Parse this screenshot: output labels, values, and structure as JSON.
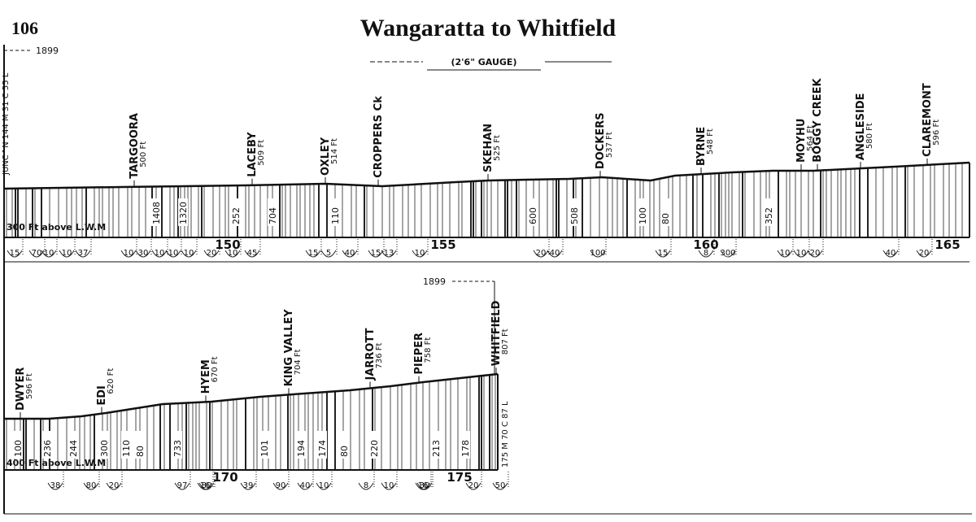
{
  "page_number": "106",
  "title": "Wangaratta to Whitfield",
  "gauge": "(2'6\" GAUGE)",
  "opened": [
    "1899",
    "1899"
  ],
  "top": {
    "junction": "JUNC^N 144 M 31 C 55 L",
    "datum": "300 Ft above L.W.M",
    "stations": [
      {
        "name": "TARGOORA",
        "height": "500 Ft"
      },
      {
        "name": "LACEBY",
        "height": "509 Ft"
      },
      {
        "name": "OXLEY",
        "height": "514 Ft"
      },
      {
        "name": "CROPPERS Ck"
      },
      {
        "name": "SKEHAN",
        "height": "525 Ft"
      },
      {
        "name": "DOCKERS",
        "height": "537 Ft"
      },
      {
        "name": "BYRNE",
        "height": "548 Ft"
      },
      {
        "name": "MOYHU",
        "height": "564 Ft"
      },
      {
        "name": "BOGGY CREEK"
      },
      {
        "name": "ANGLESIDE",
        "height": "580 Ft"
      },
      {
        "name": "CLAREMONT",
        "height": "596 Ft"
      }
    ],
    "miles": [
      "150",
      "155",
      "160",
      "165"
    ],
    "lengths": [
      "1408",
      "1320",
      "252",
      "704",
      "110",
      "600",
      "508",
      "100",
      "80",
      "352"
    ],
    "grades": [
      "15",
      "70",
      "10",
      "10",
      "37",
      "10",
      "30",
      "10",
      "10",
      "10",
      "20",
      "10",
      "45",
      "15",
      "5",
      "40",
      "15",
      "13",
      "10",
      "20",
      "40",
      "100",
      "15",
      "8",
      "300",
      "10",
      "10",
      "20",
      "40",
      "20"
    ]
  },
  "bottom": {
    "datum": "400 Ft above L.W.M",
    "stations": [
      {
        "name": "DWYER",
        "height": "596 Ft"
      },
      {
        "name": "EDI",
        "height": "620 Ft"
      },
      {
        "name": "HYEM",
        "height": "670 Ft"
      },
      {
        "name": "KING VALLEY",
        "height": "704 Ft"
      },
      {
        "name": "JARROTT",
        "height": "736 Ft"
      },
      {
        "name": "PIEPER",
        "height": "758 Ft"
      },
      {
        "name": "WHITFIELD",
        "height": "807 Ft"
      }
    ],
    "terminus": "175 M 70 C 87 L",
    "miles": [
      "170",
      "175"
    ],
    "lengths": [
      "100",
      "236",
      "244",
      "300",
      "110",
      "80",
      "733",
      "101",
      "194",
      "174",
      "80",
      "220",
      "213",
      "178"
    ],
    "grades": [
      "38",
      "80",
      "20",
      "97",
      "80",
      "16",
      "39",
      "90",
      "40",
      "10",
      "8",
      "10",
      "30",
      "16",
      "20",
      "50"
    ]
  }
}
